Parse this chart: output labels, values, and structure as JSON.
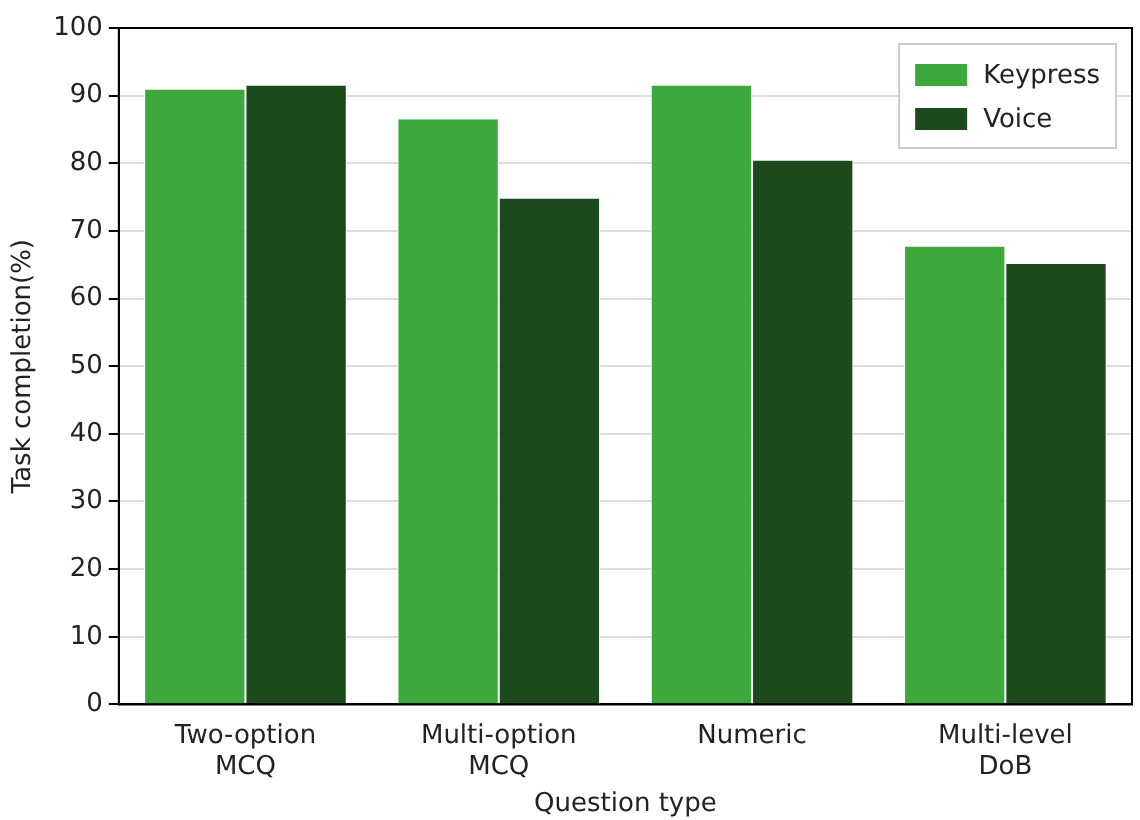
{
  "chart_data": {
    "type": "bar",
    "xlabel": "Question type",
    "ylabel": "Task completion(%)",
    "categories": [
      "Two-option MCQ",
      "Multi-option MCQ",
      "Numeric",
      "Multi-level DoB"
    ],
    "series": [
      {
        "name": "Keypress",
        "color": "#3da93d",
        "values": [
          90.9,
          86.5,
          91.5,
          67.7
        ]
      },
      {
        "name": "Voice",
        "color": "#1c4a1c",
        "values": [
          91.5,
          74.8,
          80.4,
          65.1
        ]
      }
    ],
    "ylim": [
      0,
      100
    ],
    "yticks": [
      0,
      10,
      20,
      30,
      40,
      50,
      60,
      70,
      80,
      90,
      100
    ],
    "grid": "y",
    "legend": "top right"
  }
}
